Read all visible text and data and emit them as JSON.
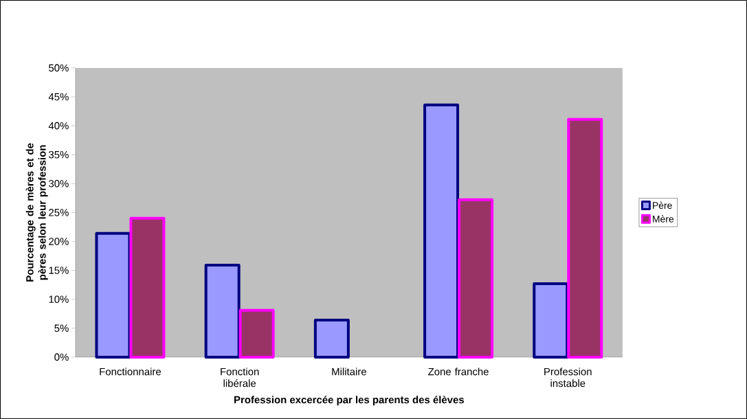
{
  "chart_data": {
    "type": "bar",
    "xlabel": "Profession excercée par les parents des élèves",
    "ylabel": "Pourcentage de mères et de pères selon leur profession",
    "categories": [
      "Fonctionnaire",
      "Fonction libérale",
      "Militaire",
      "Zone franche",
      "Profession instable"
    ],
    "series": [
      {
        "name": "Père",
        "color": "#9999ff",
        "values": [
          21.4,
          15.9,
          6.4,
          43.6,
          12.7
        ]
      },
      {
        "name": "Mère",
        "color": "#993366",
        "values": [
          24.0,
          8.1,
          null,
          27.2,
          41.1
        ]
      }
    ],
    "ylim": [
      0,
      50
    ],
    "yticks": [
      {
        "value": 0,
        "label": "0%"
      },
      {
        "value": 5,
        "label": "5%"
      },
      {
        "value": 10,
        "label": "10%"
      },
      {
        "value": 15,
        "label": "15%"
      },
      {
        "value": 20,
        "label": "20%"
      },
      {
        "value": 25,
        "label": "25%"
      },
      {
        "value": 30,
        "label": "30%"
      },
      {
        "value": 35,
        "label": "35%"
      },
      {
        "value": 40,
        "label": "40%"
      },
      {
        "value": 45,
        "label": "45%"
      },
      {
        "value": 50,
        "label": "50%"
      }
    ],
    "grid": false,
    "legend": "right"
  }
}
